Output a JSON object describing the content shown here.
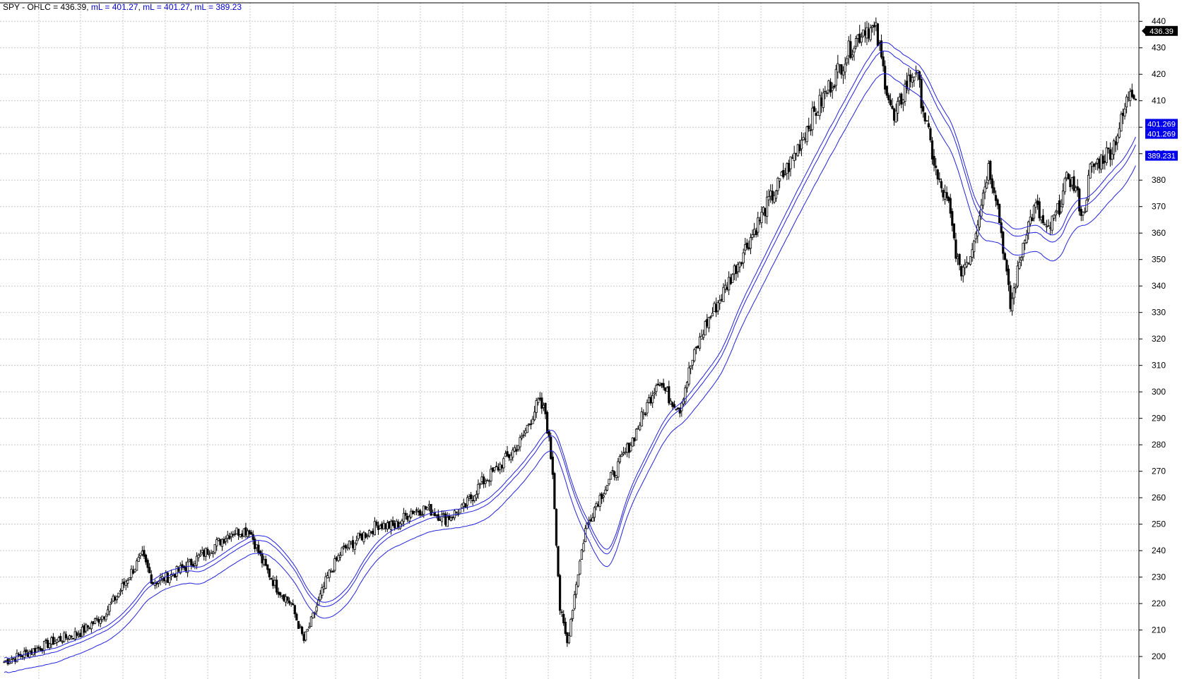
{
  "header": {
    "symbol_label": "SPY - OHLC = 436.39",
    "ma1_label": "mL = 401.27",
    "ma2_label": "mL = 401.27",
    "ma3_label": "mL = 389.23"
  },
  "colors": {
    "candle": "#000000",
    "ma_line": "#2222dd",
    "grid": "#c8c8c8",
    "axis": "#000000",
    "price_tag_bg": "#000000",
    "ma_tag_bg": "#0000ee"
  },
  "chart_data": {
    "type": "candlestick",
    "title": "SPY - OHLC",
    "y_ticks": [
      200,
      210,
      220,
      230,
      240,
      250,
      260,
      270,
      280,
      290,
      300,
      310,
      320,
      330,
      340,
      350,
      360,
      370,
      380,
      390,
      400,
      410,
      420,
      430,
      440
    ],
    "y_tick_labels": [
      "200",
      "210",
      "220",
      "230",
      "240",
      "250",
      "260",
      "270",
      "280",
      "290",
      "300",
      "310",
      "320",
      "330",
      "340",
      "350",
      "360",
      "370",
      "380",
      "390",
      "400",
      "410",
      "420",
      "430",
      "440"
    ],
    "ylim": [
      191.5,
      447
    ],
    "grid": true,
    "price_axis": "right",
    "last_price_label": "436.39",
    "ma_labels": [
      "401.269",
      "401.269",
      "389.231"
    ],
    "ma_label_values": [
      401.269,
      397.5,
      389.231
    ],
    "anchors": [
      [
        0,
        198
      ],
      [
        15,
        202
      ],
      [
        28,
        206
      ],
      [
        42,
        209
      ],
      [
        55,
        216
      ],
      [
        63,
        224
      ],
      [
        70,
        232
      ],
      [
        76,
        238
      ],
      [
        82,
        228
      ],
      [
        90,
        230
      ],
      [
        100,
        234
      ],
      [
        112,
        240
      ],
      [
        125,
        247
      ],
      [
        135,
        248
      ],
      [
        142,
        236
      ],
      [
        150,
        226
      ],
      [
        158,
        220
      ],
      [
        165,
        206
      ],
      [
        170,
        215
      ],
      [
        178,
        230
      ],
      [
        186,
        240
      ],
      [
        196,
        245
      ],
      [
        206,
        250
      ],
      [
        215,
        249
      ],
      [
        224,
        255
      ],
      [
        233,
        256
      ],
      [
        243,
        252
      ],
      [
        253,
        256
      ],
      [
        262,
        265
      ],
      [
        270,
        270
      ],
      [
        278,
        276
      ],
      [
        285,
        282
      ],
      [
        290,
        290
      ],
      [
        294,
        296
      ],
      [
        298,
        292
      ],
      [
        302,
        270
      ],
      [
        306,
        218
      ],
      [
        310,
        205
      ],
      [
        315,
        228
      ],
      [
        320,
        248
      ],
      [
        326,
        258
      ],
      [
        332,
        265
      ],
      [
        338,
        272
      ],
      [
        346,
        282
      ],
      [
        354,
        295
      ],
      [
        360,
        305
      ],
      [
        366,
        298
      ],
      [
        372,
        294
      ],
      [
        378,
        310
      ],
      [
        386,
        325
      ],
      [
        394,
        335
      ],
      [
        402,
        346
      ],
      [
        410,
        357
      ],
      [
        418,
        368
      ],
      [
        426,
        378
      ],
      [
        434,
        388
      ],
      [
        442,
        400
      ],
      [
        450,
        410
      ],
      [
        458,
        420
      ],
      [
        466,
        430
      ],
      [
        474,
        438
      ],
      [
        480,
        436
      ],
      [
        485,
        418
      ],
      [
        490,
        402
      ],
      [
        496,
        415
      ],
      [
        502,
        422
      ],
      [
        508,
        400
      ],
      [
        514,
        380
      ],
      [
        520,
        370
      ],
      [
        526,
        345
      ],
      [
        532,
        352
      ],
      [
        538,
        372
      ],
      [
        542,
        385
      ],
      [
        546,
        375
      ],
      [
        550,
        355
      ],
      [
        554,
        332
      ],
      [
        558,
        345
      ],
      [
        562,
        360
      ],
      [
        568,
        370
      ],
      [
        574,
        360
      ],
      [
        580,
        368
      ],
      [
        586,
        382
      ],
      [
        590,
        376
      ],
      [
        594,
        366
      ],
      [
        598,
        384
      ],
      [
        604,
        388
      ],
      [
        610,
        392
      ],
      [
        616,
        404
      ],
      [
        620,
        415
      ],
      [
        623,
        413
      ]
    ],
    "ma_series": [
      {
        "offset": 3,
        "label": "mL = 401.27"
      },
      {
        "offset": 0,
        "label": "mL = 401.27"
      },
      {
        "offset": -8,
        "label": "mL = 389.23"
      }
    ],
    "bars": 624
  }
}
